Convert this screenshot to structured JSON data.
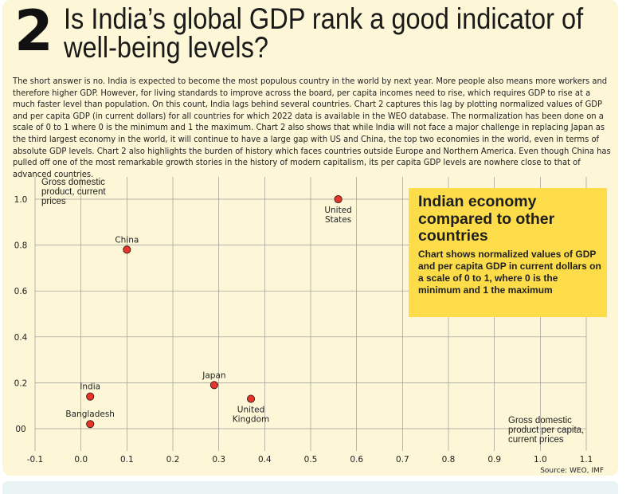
{
  "header": {
    "number": "2",
    "title_line1": "Is India’s global GDP rank a good indicator of",
    "title_line2": "well-being levels?"
  },
  "body_text": "The short answer is no. India is expected to become the most populous country in the world by next year. More people also means more workers and therefore higher GDP. However, for living standards to improve across the board, per capita incomes need to rise, which requires GDP to rise at a much faster level than population. On this count, India lags behind several countries. Chart 2 captures this lag by plotting normalized values of GDP and per capita GDP (in current dollars) for all countries for which 2022 data is available in the WEO database. The normalization has been done on a scale of 0 to 1 where 0 is the minimum and 1 the maximum. Chart 2 also shows that while India will not face a major challenge in replacing Japan as the third largest economy in the world, it will continue to have a large gap with US and China, the top two economies in the world, even in terms of absolute GDP levels. Chart 2 also highlights the burden of history which faces countries outside Europe and Northern America. Even though China has pulled off one of the most remarkable growth stories in the history of modern capitalism, its per capita GDP levels are nowhere close to that of advanced countries.",
  "callout": {
    "title_lines": [
      "Indian economy",
      "compared to other",
      "countries"
    ],
    "subtitle": "Chart shows normalized values of GDP and per capita GDP in current dollars on a scale of 0 to 1, where 0 is the minimum and 1 the maximum"
  },
  "source": "Source: WEO, IMF",
  "chart_data": {
    "type": "scatter",
    "xlabel_lines": [
      "Gross domestic",
      "product per capita,",
      "current prices"
    ],
    "ylabel_lines": [
      "Gross domestic",
      "product, current",
      "prices"
    ],
    "xlim": [
      -0.1,
      1.1
    ],
    "ylim": [
      0.0,
      1.0
    ],
    "x_ticks": [
      "-0.1",
      "0.0",
      "0.1",
      "0.2",
      "0.3",
      "0.4",
      "0.5",
      "0.6",
      "0.7",
      "0.8",
      "0.9",
      "1.0",
      "1.1"
    ],
    "x_tick_values": [
      -0.1,
      0.0,
      0.1,
      0.2,
      0.3,
      0.4,
      0.5,
      0.6,
      0.7,
      0.8,
      0.9,
      1.0,
      1.1
    ],
    "y_ticks": [
      "00",
      "0.2",
      "0.4",
      "0.6",
      "0.8",
      "1.0"
    ],
    "y_tick_values": [
      0.0,
      0.2,
      0.4,
      0.6,
      0.8,
      1.0
    ],
    "grid": true,
    "point_color": "#e8352b",
    "points": [
      {
        "label": "United States",
        "label_lines": [
          "United",
          "States"
        ],
        "x": 0.56,
        "y": 1.0,
        "label_pos": "below"
      },
      {
        "label": "China",
        "label_lines": [
          "China"
        ],
        "x": 0.1,
        "y": 0.78,
        "label_pos": "above"
      },
      {
        "label": "Japan",
        "label_lines": [
          "Japan"
        ],
        "x": 0.29,
        "y": 0.19,
        "label_pos": "above"
      },
      {
        "label": "United Kingdom",
        "label_lines": [
          "United",
          "Kingdom"
        ],
        "x": 0.37,
        "y": 0.13,
        "label_pos": "below"
      },
      {
        "label": "India",
        "label_lines": [
          "India"
        ],
        "x": 0.02,
        "y": 0.14,
        "label_pos": "above"
      },
      {
        "label": "Bangladesh",
        "label_lines": [
          "Bangladesh"
        ],
        "x": 0.02,
        "y": 0.02,
        "label_pos": "above"
      }
    ]
  }
}
